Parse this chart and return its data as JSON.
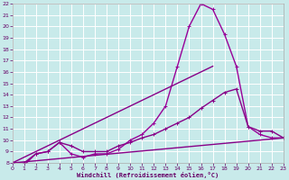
{
  "xlabel": "Windchill (Refroidissement éolien,°C)",
  "xlim": [
    0,
    23
  ],
  "ylim": [
    8,
    22
  ],
  "xticks": [
    0,
    1,
    2,
    3,
    4,
    5,
    6,
    7,
    8,
    9,
    10,
    11,
    12,
    13,
    14,
    15,
    16,
    17,
    18,
    19,
    20,
    21,
    22,
    23
  ],
  "yticks": [
    8,
    9,
    10,
    11,
    12,
    13,
    14,
    15,
    16,
    17,
    18,
    19,
    20,
    21,
    22
  ],
  "bg_color": "#c8eaea",
  "grid_color": "#ffffff",
  "series": [
    {
      "x": [
        0,
        1,
        2,
        3,
        4,
        5,
        6,
        7,
        8,
        9,
        10,
        11,
        12,
        13,
        14,
        15,
        16,
        17,
        18,
        19,
        20,
        21,
        22,
        23
      ],
      "y": [
        8,
        7.8,
        8.8,
        9.0,
        9.8,
        8.8,
        8.5,
        8.8,
        8.8,
        9.2,
        10.0,
        10.5,
        11.5,
        13.0,
        16.5,
        20.0,
        22.0,
        21.5,
        19.3,
        16.5,
        11.2,
        10.5,
        10.2,
        10.2
      ],
      "marker": "+",
      "color": "#990099",
      "lw": 1.0,
      "ms": 3
    },
    {
      "x": [
        0,
        1,
        2,
        3,
        4,
        5,
        6,
        7,
        8,
        9,
        10,
        11,
        12,
        13,
        14,
        15,
        16,
        17,
        18,
        19,
        20,
        21,
        22,
        23
      ],
      "y": [
        8,
        8,
        8.8,
        9.0,
        9.8,
        9.5,
        9.0,
        9.0,
        9.0,
        9.5,
        9.8,
        10.2,
        10.5,
        11.0,
        11.5,
        12.0,
        12.8,
        13.5,
        14.2,
        14.5,
        11.2,
        10.8,
        10.8,
        10.2
      ],
      "marker": "+",
      "color": "#880088",
      "lw": 1.0,
      "ms": 2.5
    },
    {
      "x": [
        0,
        23
      ],
      "y": [
        8,
        10.2
      ],
      "marker": null,
      "color": "#880088",
      "lw": 1.0,
      "ms": 0
    },
    {
      "x": [
        0,
        17
      ],
      "y": [
        8,
        16.5
      ],
      "marker": null,
      "color": "#880088",
      "lw": 1.0,
      "ms": 0
    }
  ]
}
